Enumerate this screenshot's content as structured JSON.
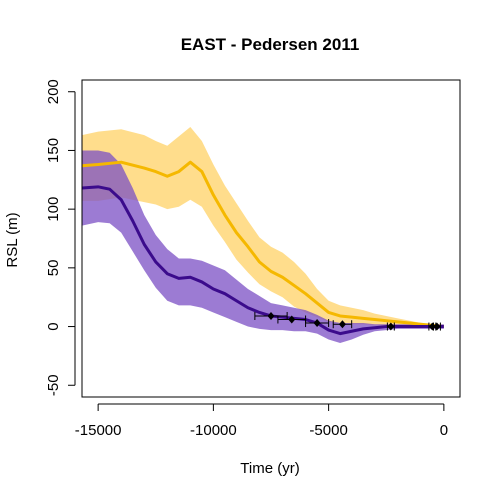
{
  "chart_data": {
    "type": "line",
    "title": "EAST - Pedersen 2011",
    "xlabel": "Time (yr)",
    "ylabel": "RSL (m)",
    "xlim": [
      -15700,
      700
    ],
    "ylim": [
      -60,
      210
    ],
    "x_ticks": [
      -15000,
      -10000,
      -5000,
      0
    ],
    "x_tick_labels": [
      "-15000",
      "-10000",
      "-5000",
      "0"
    ],
    "y_ticks": [
      -50,
      0,
      50,
      100,
      150,
      200
    ],
    "y_tick_labels": [
      "-50",
      "0",
      "50",
      "100",
      "150",
      "200"
    ],
    "grid": false,
    "legend": "none",
    "series": [
      {
        "color": "#f5b800",
        "band_color": "#ffd166",
        "x": [
          -15700,
          -15000,
          -14000,
          -13000,
          -12500,
          -12000,
          -11500,
          -11000,
          -10500,
          -10000,
          -9500,
          -9000,
          -8500,
          -8000,
          -7500,
          -7000,
          -6500,
          -6000,
          -5500,
          -5000,
          -4500,
          -4000,
          -3500,
          -3000,
          -2500,
          -2000,
          -1500,
          -1000,
          -500,
          0
        ],
        "mean": [
          137,
          138,
          140,
          135,
          132,
          128,
          132,
          140,
          132,
          112,
          95,
          80,
          68,
          55,
          47,
          42,
          35,
          28,
          20,
          12,
          9,
          8,
          7,
          6,
          5,
          4,
          3,
          2,
          1,
          0
        ],
        "upper": [
          163,
          166,
          168,
          163,
          158,
          154,
          162,
          170,
          158,
          138,
          120,
          105,
          90,
          76,
          68,
          63,
          55,
          45,
          32,
          22,
          18,
          16,
          14,
          11,
          9,
          7,
          5,
          3,
          2,
          1
        ],
        "lower": [
          107,
          107,
          110,
          106,
          104,
          100,
          102,
          108,
          102,
          86,
          72,
          57,
          46,
          36,
          30,
          25,
          17,
          12,
          8,
          4,
          3,
          2,
          2,
          1,
          1,
          1,
          0,
          0,
          0,
          -1
        ]
      },
      {
        "color": "#3b0b8c",
        "band_color": "#7b4fc4",
        "x": [
          -15700,
          -15000,
          -14500,
          -14000,
          -13500,
          -13000,
          -12500,
          -12000,
          -11500,
          -11000,
          -10500,
          -10000,
          -9500,
          -9000,
          -8500,
          -8000,
          -7500,
          -7000,
          -6500,
          -6000,
          -5500,
          -5000,
          -4500,
          -4000,
          -3500,
          -3000,
          -2500,
          -2000,
          -1500,
          -1000,
          -500,
          0
        ],
        "mean": [
          118,
          119,
          117,
          108,
          90,
          70,
          55,
          45,
          41,
          42,
          38,
          32,
          28,
          22,
          16,
          12,
          9,
          8,
          7,
          6,
          3,
          -3,
          -6,
          -4,
          -2,
          -1,
          0,
          0,
          0,
          0,
          0,
          0
        ],
        "upper": [
          150,
          150,
          148,
          138,
          118,
          95,
          78,
          66,
          58,
          58,
          56,
          52,
          48,
          40,
          32,
          26,
          20,
          18,
          16,
          14,
          10,
          5,
          3,
          3,
          3,
          2,
          2,
          2,
          2,
          2,
          2,
          2
        ],
        "lower": [
          86,
          89,
          88,
          80,
          64,
          48,
          33,
          22,
          18,
          18,
          16,
          12,
          8,
          4,
          0,
          -2,
          -3,
          -3,
          -4,
          -4,
          -6,
          -11,
          -14,
          -11,
          -7,
          -4,
          -3,
          -2,
          -2,
          -2,
          -2,
          -2
        ]
      }
    ],
    "observations": {
      "color": "#000000",
      "points": [
        {
          "x": -7500,
          "y": 9,
          "xerr": 700,
          "yerr": 2
        },
        {
          "x": -6600,
          "y": 6,
          "xerr": 600,
          "yerr": 2
        },
        {
          "x": -5500,
          "y": 3,
          "xerr": 500,
          "yerr": 2
        },
        {
          "x": -4400,
          "y": 2,
          "xerr": 400,
          "yerr": 2
        },
        {
          "x": -2300,
          "y": 0,
          "xerr": 150,
          "yerr": 2
        },
        {
          "x": -500,
          "y": 0,
          "xerr": 150,
          "yerr": 2
        },
        {
          "x": -300,
          "y": 0,
          "xerr": 150,
          "yerr": 2
        }
      ]
    }
  }
}
